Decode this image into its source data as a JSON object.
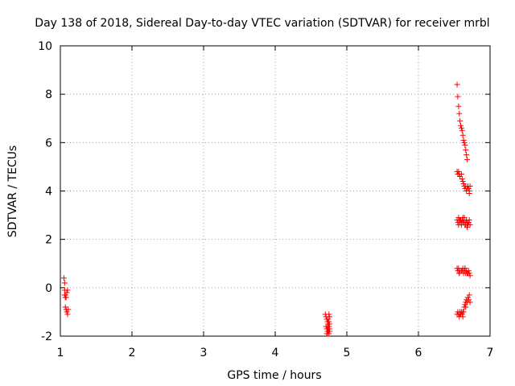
{
  "chart_data": {
    "type": "scatter",
    "title": "Day 138 of 2018, Sidereal Day-to-day VTEC variation (SDTVAR) for receiver mrbl",
    "xlabel": "GPS time / hours",
    "ylabel": "SDTVAR / TECUs",
    "xlim": [
      1,
      7
    ],
    "ylim": [
      -2,
      10
    ],
    "xticks": [
      "1",
      "2",
      "3",
      "4",
      "5",
      "6",
      "7"
    ],
    "yticks": [
      "-2",
      "0",
      "2",
      "4",
      "6",
      "8",
      "10"
    ],
    "grid": true,
    "marker": "+",
    "color": "#ff0000",
    "series": [
      {
        "x": [
          1.05,
          1.06,
          1.06,
          1.07,
          1.08,
          1.09,
          1.1,
          1.07,
          1.08,
          1.09,
          1.1,
          1.11,
          1.06,
          1.07,
          4.7,
          4.71,
          4.72,
          4.73,
          4.74,
          4.75,
          4.71,
          4.72,
          4.73,
          4.74,
          4.75,
          4.76,
          4.72,
          4.73,
          4.74,
          4.75,
          4.76,
          4.73,
          4.74,
          4.75,
          4.76,
          4.76,
          4.74,
          4.75,
          6.54,
          6.55,
          6.56,
          6.57,
          6.58,
          6.59,
          6.6,
          6.61,
          6.62,
          6.63,
          6.64,
          6.65,
          6.66,
          6.67,
          6.68,
          6.69,
          6.7,
          6.71,
          6.54,
          6.55,
          6.56,
          6.57,
          6.58,
          6.6,
          6.61,
          6.62,
          6.63,
          6.64,
          6.65,
          6.66,
          6.67,
          6.68,
          6.7,
          6.71,
          6.72,
          6.54,
          6.55,
          6.56,
          6.57,
          6.58,
          6.59,
          6.6,
          6.61,
          6.62,
          6.63,
          6.64,
          6.65,
          6.66,
          6.67,
          6.68,
          6.69,
          6.7,
          6.71,
          6.72,
          6.56,
          6.6,
          6.64,
          6.68,
          6.58,
          6.62,
          6.66,
          6.7,
          6.54,
          6.55,
          6.56,
          6.57,
          6.58,
          6.6,
          6.62,
          6.63,
          6.64,
          6.65,
          6.66,
          6.67,
          6.68,
          6.7,
          6.71,
          6.72,
          6.57,
          6.61,
          6.65,
          6.69,
          6.54,
          6.55,
          6.56,
          6.57,
          6.58,
          6.59,
          6.6,
          6.61,
          6.62,
          6.63,
          6.64,
          6.65,
          6.66,
          6.67,
          6.68,
          6.69,
          6.7,
          6.71,
          6.72,
          6.58,
          6.62,
          6.66,
          6.7
        ],
        "y": [
          0.4,
          0.2,
          -0.1,
          -0.3,
          -0.4,
          -0.2,
          -0.1,
          -0.8,
          -0.9,
          -1.0,
          -1.1,
          -0.9,
          -0.3,
          -0.4,
          -1.1,
          -1.2,
          -1.3,
          -1.4,
          -1.3,
          -1.1,
          -1.6,
          -1.7,
          -1.8,
          -1.7,
          -1.6,
          -1.5,
          -1.9,
          -1.9,
          -1.8,
          -1.9,
          -1.8,
          -1.6,
          -1.7,
          -1.8,
          -1.7,
          -1.2,
          -1.5,
          -1.4,
          8.4,
          7.9,
          7.5,
          7.2,
          6.9,
          6.7,
          6.6,
          6.5,
          6.3,
          6.1,
          6.0,
          5.9,
          5.7,
          5.5,
          5.3,
          4.2,
          4.1,
          3.9,
          4.8,
          4.7,
          4.8,
          4.7,
          4.6,
          4.7,
          4.5,
          4.4,
          4.3,
          4.2,
          4.1,
          4.2,
          4.0,
          4.1,
          4.1,
          4.0,
          4.2,
          2.8,
          2.7,
          2.9,
          2.8,
          2.7,
          2.8,
          2.6,
          2.8,
          2.9,
          2.7,
          2.8,
          2.6,
          2.7,
          2.8,
          2.5,
          2.6,
          2.7,
          2.8,
          2.6,
          2.6,
          2.7,
          2.9,
          2.7,
          2.8,
          2.7,
          2.6,
          2.7,
          0.8,
          0.7,
          0.8,
          0.6,
          0.7,
          0.7,
          0.8,
          0.6,
          0.7,
          0.8,
          0.6,
          0.7,
          0.6,
          0.7,
          0.6,
          0.5,
          0.6,
          0.7,
          0.8,
          0.6,
          -1.1,
          -1.0,
          -1.1,
          -1.2,
          -1.0,
          -1.1,
          -1.0,
          -1.1,
          -1.2,
          -1.0,
          -0.8,
          -0.7,
          -0.6,
          -0.5,
          -0.6,
          -0.4,
          -0.5,
          -0.3,
          -0.6,
          -1.1,
          -1.0,
          -0.8,
          -0.5
        ]
      }
    ]
  }
}
